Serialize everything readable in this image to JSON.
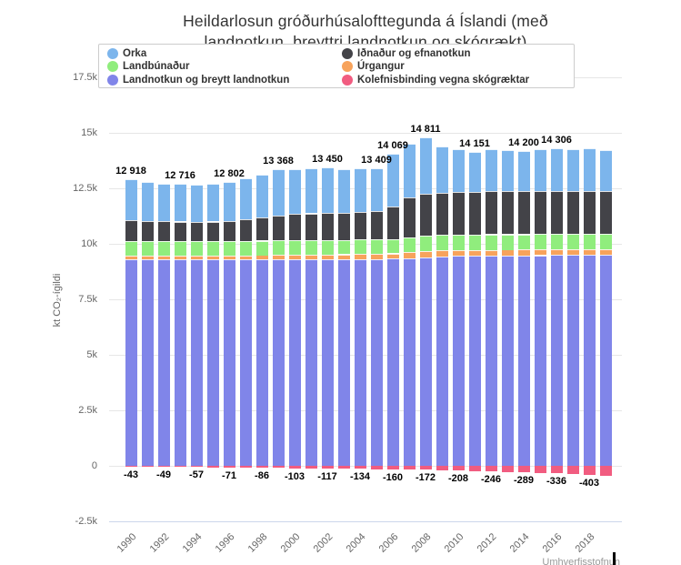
{
  "title": {
    "line1": "Heildarlosun gróðurhúsalofttegunda á Íslandi (með",
    "line2": "landnotkun, breyttri landnotkun og skógrækt)"
  },
  "legend": {
    "items": [
      {
        "id": "orka",
        "label": "Orka",
        "color": "#7cb5ec"
      },
      {
        "id": "landbunadur",
        "label": "Landbúnaður",
        "color": "#90ed7d"
      },
      {
        "id": "landnotkun",
        "label": "Landnotkun og breytt landnotkun",
        "color": "#8085e9"
      },
      {
        "id": "idnadur",
        "label": "Iðnaður og efnanotkun",
        "color": "#434348"
      },
      {
        "id": "urgangur",
        "label": "Úrgangur",
        "color": "#f7a35c"
      },
      {
        "id": "kolefnisbinding",
        "label": "Kolefnisbinding vegna skógræktar",
        "color": "#f15c80"
      }
    ]
  },
  "y_axis": {
    "title": "kt CO₂-ígildi",
    "ticks": [
      {
        "value": -2500,
        "label": "-2.5k"
      },
      {
        "value": 0,
        "label": "0"
      },
      {
        "value": 2500,
        "label": "2.5k"
      },
      {
        "value": 5000,
        "label": "5k"
      },
      {
        "value": 7500,
        "label": "7.5k"
      },
      {
        "value": 10000,
        "label": "10k"
      },
      {
        "value": 12500,
        "label": "12.5k"
      },
      {
        "value": 15000,
        "label": "15k"
      },
      {
        "value": 17500,
        "label": "17.5k"
      }
    ]
  },
  "x_axis": {
    "ticks": [
      {
        "i": 0,
        "label": "1990"
      },
      {
        "i": 2,
        "label": "1992"
      },
      {
        "i": 4,
        "label": "1994"
      },
      {
        "i": 6,
        "label": "1996"
      },
      {
        "i": 8,
        "label": "1998"
      },
      {
        "i": 10,
        "label": "2000"
      },
      {
        "i": 12,
        "label": "2002"
      },
      {
        "i": 14,
        "label": "2004"
      },
      {
        "i": 16,
        "label": "2006"
      },
      {
        "i": 18,
        "label": "2008"
      },
      {
        "i": 20,
        "label": "2010"
      },
      {
        "i": 22,
        "label": "2012"
      },
      {
        "i": 24,
        "label": "2014"
      },
      {
        "i": 26,
        "label": "2016"
      },
      {
        "i": 28,
        "label": "2018"
      }
    ]
  },
  "attribution": "Umhverfisstofnun",
  "chart_data": {
    "type": "bar",
    "stacked": true,
    "title": "Heildarlosun gróðurhúsalofttegunda á Íslandi (með landnotkun, breyttri landnotkun og skógrækt)",
    "ylabel": "kt CO₂-ígildi",
    "ylim": [
      -2500,
      17500
    ],
    "grid": true,
    "legend_position": "top",
    "x": [
      1990,
      1991,
      1992,
      1993,
      1994,
      1995,
      1996,
      1997,
      1998,
      1999,
      2000,
      2001,
      2002,
      2003,
      2004,
      2005,
      2006,
      2007,
      2008,
      2009,
      2010,
      2011,
      2012,
      2013,
      2014,
      2015,
      2016,
      2017,
      2018,
      2019
    ],
    "series": [
      {
        "id": "orka",
        "name": "Orka",
        "color": "#7cb5ec",
        "values": [
          1858,
          1744,
          1693,
          1713,
          1662,
          1694,
          1763,
          1852,
          1936,
          2087,
          2013,
          2026,
          2055,
          1969,
          1988,
          1949,
          2389,
          2395,
          2556,
          2090,
          1932,
          1806,
          1899,
          1853,
          1828,
          1875,
          1915,
          1857,
          1925,
          1821
        ]
      },
      {
        "id": "idnadur",
        "name": "Iðnaður og efnanotkun",
        "color": "#434348",
        "values": [
          945,
          925,
          900,
          890,
          878,
          890,
          915,
          965,
          1040,
          1125,
          1185,
          1205,
          1220,
          1230,
          1245,
          1265,
          1460,
          1830,
          1890,
          1910,
          1925,
          1920,
          1930,
          1935,
          1940,
          1950,
          1955,
          1958,
          1960,
          1955
        ]
      },
      {
        "id": "landbunadur",
        "name": "Landbúnaður",
        "color": "#90ed7d",
        "values": [
          650,
          648,
          646,
          647,
          645,
          646,
          648,
          650,
          654,
          658,
          656,
          654,
          653,
          651,
          649,
          647,
          650,
          660,
          690,
          700,
          705,
          700,
          698,
          695,
          692,
          690,
          688,
          686,
          684,
          682
        ]
      },
      {
        "id": "urgangur",
        "name": "Úrgangur",
        "color": "#f7a35c",
        "values": [
          165,
          168,
          171,
          174,
          177,
          180,
          184,
          188,
          192,
          196,
          200,
          205,
          210,
          215,
          220,
          226,
          240,
          255,
          275,
          270,
          268,
          265,
          263,
          262,
          260,
          260,
          258,
          257,
          256,
          255
        ]
      },
      {
        "id": "landnotkun",
        "name": "Landnotkun og breytt landnotkun",
        "color": "#8085e9",
        "values": [
          9300,
          9295,
          9290,
          9292,
          9288,
          9290,
          9292,
          9295,
          9298,
          9302,
          9306,
          9310,
          9312,
          9315,
          9318,
          9322,
          9330,
          9360,
          9400,
          9430,
          9450,
          9460,
          9470,
          9475,
          9480,
          9485,
          9490,
          9492,
          9495,
          9497
        ]
      },
      {
        "id": "kolefnisbinding",
        "name": "Kolefnisbinding vegna skógræktar",
        "color": "#f15c80",
        "values": [
          -43,
          -46,
          -49,
          -53,
          -57,
          -64,
          -71,
          -78,
          -86,
          -94,
          -103,
          -110,
          -117,
          -125,
          -134,
          -147,
          -160,
          -166,
          -172,
          -190,
          -208,
          -227,
          -246,
          -267,
          -289,
          -312,
          -336,
          -369,
          -403,
          -440
        ]
      }
    ],
    "stack_order_bottom_to_top": [
      "landnotkun",
      "urgangur",
      "landbunadur",
      "idnadur",
      "orka"
    ],
    "total_labels": [
      {
        "i": 0,
        "text": "12 918"
      },
      {
        "i": 3,
        "text": "12 716"
      },
      {
        "i": 6,
        "text": "12 802"
      },
      {
        "i": 9,
        "text": "13 368"
      },
      {
        "i": 12,
        "text": "13 450"
      },
      {
        "i": 15,
        "text": "13 409"
      },
      {
        "i": 16,
        "text": "14 069"
      },
      {
        "i": 18,
        "text": "14 811"
      },
      {
        "i": 21,
        "text": "14 151"
      },
      {
        "i": 24,
        "text": "14 200"
      },
      {
        "i": 26,
        "text": "14 306"
      }
    ],
    "negative_labels": [
      {
        "i": 0,
        "text": "-43"
      },
      {
        "i": 2,
        "text": "-49"
      },
      {
        "i": 4,
        "text": "-57"
      },
      {
        "i": 6,
        "text": "-71"
      },
      {
        "i": 8,
        "text": "-86"
      },
      {
        "i": 10,
        "text": "-103"
      },
      {
        "i": 12,
        "text": "-117"
      },
      {
        "i": 14,
        "text": "-134"
      },
      {
        "i": 16,
        "text": "-160"
      },
      {
        "i": 18,
        "text": "-172"
      },
      {
        "i": 20,
        "text": "-208"
      },
      {
        "i": 22,
        "text": "-246"
      },
      {
        "i": 24,
        "text": "-289"
      },
      {
        "i": 26,
        "text": "-336"
      },
      {
        "i": 28,
        "text": "-403"
      }
    ]
  }
}
